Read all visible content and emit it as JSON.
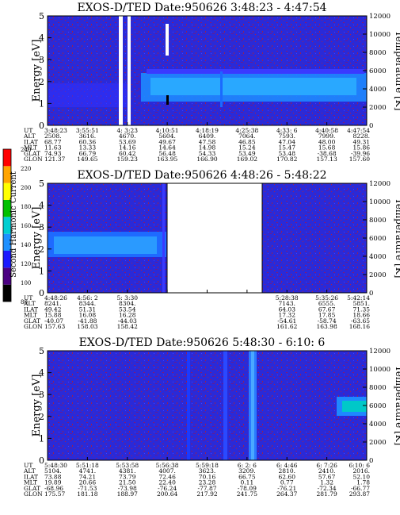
{
  "chart_data": [
    {
      "type": "heatmap",
      "title": "EXOS-D/TED   Date:950626  3:48:23 - 4:47:54",
      "ylabel": "Energy [eV]",
      "y2label": "Temperature [K]",
      "ylim": [
        0,
        5
      ],
      "y2lim": [
        0,
        12000
      ],
      "yticks": [
        "0",
        "1",
        "2",
        "3",
        "4",
        "5"
      ],
      "y2ticks": [
        "0",
        "2000",
        "4000",
        "6000",
        "8000",
        "10000",
        "12000"
      ],
      "row_labels": [
        "UT",
        "ALT",
        "ILAT",
        "MLT",
        "GLAT",
        "GLON"
      ],
      "columns": [
        [
          "3:48:23",
          "2508.",
          "68.77",
          "11.63",
          "74.93",
          "121.37"
        ],
        [
          "3:55:51",
          "3616.",
          "60.36",
          "13.33",
          "66.79",
          "149.65"
        ],
        [
          "4: 3:23",
          "4670.",
          "53.69",
          "14.16",
          "60.42",
          "159.23"
        ],
        [
          "4:10:51",
          "5604.",
          "49.67",
          "14.64",
          "56.48",
          "163.95"
        ],
        [
          "4:18:19",
          "6409.",
          "47.58",
          "14.98",
          "54.33",
          "166.90"
        ],
        [
          "4:25:38",
          "7064.",
          "46.85",
          "15.24",
          "53.49",
          "169.02"
        ],
        [
          "4:33: 6",
          "7593.",
          "47.04",
          "15.47",
          "53.48",
          "170.82"
        ],
        [
          "4:40:58",
          "7999.",
          "48.00",
          "15.68",
          "-38.68",
          "157.13"
        ],
        [
          "4:47:54",
          "8228.",
          "49.31",
          "15.86",
          "-39.96",
          "157.60"
        ]
      ]
    },
    {
      "type": "heatmap",
      "title": "EXOS-D/TED   Date:950626  4:48:26 - 5:48:22",
      "ylabel": "Energy [eV]",
      "y2label": "Temperature [K]",
      "ylim": [
        0,
        5
      ],
      "y2lim": [
        0,
        12000
      ],
      "yticks": [
        "0",
        "1",
        "2",
        "3",
        "4",
        "5"
      ],
      "y2ticks": [
        "0",
        "2000",
        "4000",
        "6000",
        "8000",
        "10000",
        "12000"
      ],
      "row_labels": [
        "UT",
        "ALT",
        "ILAT",
        "MLT",
        "GLAT",
        "GLON"
      ],
      "columns": [
        [
          "4:48:26",
          "8241.",
          "49.42",
          "15.88",
          "-40.07",
          "157.63"
        ],
        [
          "4:56: 2",
          "8344.",
          "51.31",
          "16.08",
          "-41.88",
          "158.03"
        ],
        [
          "5: 3:30",
          "8304.",
          "53.54",
          "16.28",
          "-44.03",
          "158.42"
        ],
        [
          "",
          "",
          "",
          "",
          "",
          ""
        ],
        [
          "",
          "",
          "",
          "",
          "",
          ""
        ],
        [
          "",
          "",
          "",
          "",
          "",
          ""
        ],
        [
          "5:28:38",
          "7143.",
          "64.03",
          "17.32",
          "-54.61",
          "161.62"
        ],
        [
          "5:35:26",
          "6555.",
          "67.67",
          "17.85",
          "-58.74",
          "163.98"
        ],
        [
          "5:42:14",
          "5851.",
          "71.35",
          "18.66",
          "-63.65",
          "168.16"
        ]
      ]
    },
    {
      "type": "heatmap",
      "title": "EXOS-D/TED   Date:950626  5:48:30 - 6:10: 6",
      "ylabel": "Energy [eV]",
      "y2label": "Temperature [K]",
      "ylim": [
        0,
        5
      ],
      "y2lim": [
        0,
        12000
      ],
      "yticks": [
        "0",
        "1",
        "2",
        "3",
        "4",
        "5"
      ],
      "y2ticks": [
        "0",
        "2000",
        "4000",
        "6000",
        "8000",
        "10000",
        "12000"
      ],
      "row_labels": [
        "UT",
        "ALT",
        "ILAT",
        "MLT",
        "GLAT",
        "GLON"
      ],
      "columns": [
        [
          "5:48:30",
          "5104.",
          "73.88",
          "19.89",
          "-68.96",
          "175.57"
        ],
        [
          "5:51:18",
          "4741.",
          "74.21",
          "20.66",
          "-71.53",
          "181.18"
        ],
        [
          "5:53:58",
          "4381.",
          "73.79",
          "21.50",
          "-73.98",
          "188.97"
        ],
        [
          "5:56:38",
          "4007.",
          "72.46",
          "22.40",
          "-76.24",
          "200.64"
        ],
        [
          "5:59:18",
          "3623.",
          "70.16",
          "23.28",
          "-77.87",
          "217.92"
        ],
        [
          "6: 2: 6",
          "3209.",
          "66.75",
          "0.11",
          "-78.09",
          "241.75"
        ],
        [
          "6: 4:46",
          "2810.",
          "62.60",
          "0.77",
          "-76.21",
          "264.37"
        ],
        [
          "6: 7:26",
          "2410.",
          "57.67",
          "1.32",
          "-72.34",
          "281.79"
        ],
        [
          "6:10: 6",
          "2016.",
          "52.10",
          "1.78",
          "-66.77",
          "293.87"
        ]
      ]
    }
  ],
  "colorbar": {
    "label": "Second Harmonic Current",
    "ticks": [
      "80",
      "100",
      "120",
      "140",
      "160",
      "180",
      "200",
      "220",
      "240"
    ],
    "colors": [
      "#000000",
      "#4b0082",
      "#1a1aff",
      "#1e90ff",
      "#00ced1",
      "#00c000",
      "#ffff00",
      "#ffa500",
      "#ff0000"
    ]
  }
}
